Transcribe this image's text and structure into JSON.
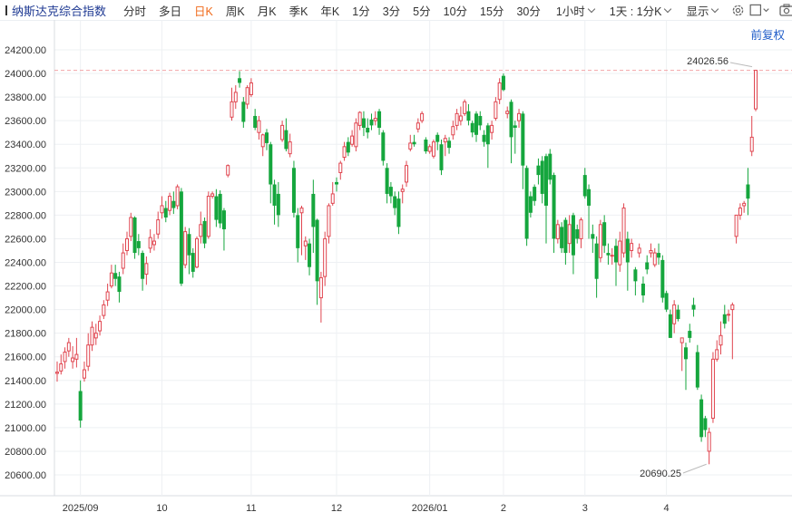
{
  "toolbar": {
    "title": "纳斯达克综合指数",
    "periods": [
      "分时",
      "多日",
      "日K",
      "周K",
      "月K",
      "季K",
      "年K",
      "1分",
      "3分",
      "5分",
      "10分",
      "15分",
      "30分"
    ],
    "active_period": "日K",
    "interval_select": "1小时",
    "range_select": "1天 : 1分K",
    "display_select": "显示",
    "icons": [
      "settings-icon",
      "square-icon",
      "camera-icon",
      "pen-icon",
      "fullscreen-icon"
    ]
  },
  "adjust_label": "前复权",
  "colors": {
    "up": "#e0454f",
    "down": "#15a63d",
    "grid": "#eef0f3",
    "ref_line": "#f2a5a8",
    "title": "#1f3a93"
  },
  "chart_data": {
    "type": "candlestick",
    "ylim": [
      20500,
      24250
    ],
    "yticks": [
      20600,
      20800,
      21000,
      21200,
      21400,
      21600,
      21800,
      22000,
      22200,
      22400,
      22600,
      22800,
      23000,
      23200,
      23400,
      23600,
      23800,
      24000,
      24200
    ],
    "ytick_labels": [
      "20600.00",
      "20800.00",
      "21000.00",
      "21200.00",
      "21400.00",
      "21600.00",
      "21800.00",
      "22000.00",
      "22200.00",
      "22400.00",
      "22600.00",
      "22800.00",
      "23000.00",
      "23200.00",
      "23400.00",
      "23600.00",
      "23800.00",
      "24000.00",
      "24200.00"
    ],
    "x_labels": [
      "2025/09",
      "10",
      "11",
      "12",
      "2026/01",
      "2",
      "3",
      "4"
    ],
    "x_label_index": [
      6,
      27,
      50,
      72,
      96,
      115,
      136,
      157
    ],
    "high_label": "24026.56",
    "low_label": "20690.25",
    "high_value": 24026.56,
    "low_value": 20690.25,
    "grid": true,
    "candles": [
      [
        21460,
        21470,
        21390,
        21560
      ],
      [
        21480,
        21540,
        21450,
        21620
      ],
      [
        21560,
        21640,
        21500,
        21680
      ],
      [
        21650,
        21720,
        21600,
        21760
      ],
      [
        21560,
        21590,
        21500,
        21690
      ],
      [
        21580,
        21620,
        21510,
        21760
      ],
      [
        21310,
        21060,
        21000,
        21400
      ],
      [
        21420,
        21490,
        21390,
        21560
      ],
      [
        21520,
        21700,
        21480,
        21800
      ],
      [
        21700,
        21850,
        21650,
        21900
      ],
      [
        21760,
        21800,
        21700,
        21880
      ],
      [
        21820,
        21900,
        21780,
        21950
      ],
      [
        21950,
        22040,
        21920,
        22080
      ],
      [
        22080,
        22150,
        22030,
        22220
      ],
      [
        22200,
        22310,
        22180,
        22380
      ],
      [
        22310,
        22260,
        22200,
        22380
      ],
      [
        22280,
        22150,
        22060,
        22320
      ],
      [
        22350,
        22480,
        22300,
        22560
      ],
      [
        22500,
        22600,
        22460,
        22660
      ],
      [
        22620,
        22780,
        22580,
        22820
      ],
      [
        22780,
        22480,
        22430,
        22790
      ],
      [
        22580,
        22520,
        22460,
        22640
      ],
      [
        22480,
        22260,
        22160,
        22500
      ],
      [
        22300,
        22390,
        22210,
        22450
      ],
      [
        22520,
        22610,
        22480,
        22680
      ],
      [
        22550,
        22580,
        22500,
        22640
      ],
      [
        22640,
        22760,
        22600,
        22830
      ],
      [
        22820,
        22880,
        22770,
        22960
      ],
      [
        22860,
        22780,
        22740,
        22920
      ],
      [
        22840,
        22960,
        22800,
        22990
      ],
      [
        22920,
        22860,
        22810,
        23000
      ],
      [
        22880,
        23040,
        22850,
        23060
      ],
      [
        23000,
        22220,
        22200,
        23030
      ],
      [
        22380,
        22660,
        22350,
        22700
      ],
      [
        22640,
        22460,
        22300,
        22690
      ],
      [
        22480,
        22320,
        22270,
        22520
      ],
      [
        22360,
        22600,
        22350,
        22620
      ],
      [
        22620,
        22720,
        22560,
        22830
      ],
      [
        22750,
        22560,
        22520,
        22780
      ],
      [
        22620,
        22960,
        22600,
        23000
      ],
      [
        22960,
        22980,
        22940,
        23000
      ],
      [
        22960,
        22760,
        22700,
        23020
      ],
      [
        22980,
        22730,
        22690,
        23010
      ],
      [
        22840,
        22680,
        22500,
        22860
      ],
      [
        23140,
        23220,
        23120,
        23230
      ],
      [
        23630,
        23760,
        23600,
        23880
      ],
      [
        23760,
        23840,
        23700,
        23900
      ],
      [
        23960,
        23920,
        23880,
        24020
      ],
      [
        23760,
        23590,
        23540,
        23800
      ],
      [
        23740,
        23880,
        23700,
        23900
      ],
      [
        23820,
        23920,
        23800,
        23960
      ],
      [
        23640,
        23540,
        23520,
        23700
      ],
      [
        23500,
        23600,
        23440,
        23640
      ],
      [
        23380,
        23480,
        23300,
        23490
      ],
      [
        23500,
        23410,
        23350,
        23530
      ],
      [
        23400,
        23060,
        22900,
        23420
      ],
      [
        23060,
        22880,
        22720,
        23100
      ],
      [
        22980,
        22800,
        22700,
        23080
      ],
      [
        23440,
        23560,
        23420,
        23600
      ],
      [
        23520,
        23360,
        23340,
        23620
      ],
      [
        23320,
        23420,
        23290,
        23490
      ],
      [
        23200,
        22820,
        22780,
        23260
      ],
      [
        22800,
        22520,
        22400,
        22860
      ],
      [
        22820,
        22860,
        22460,
        22880
      ],
      [
        22540,
        22580,
        22420,
        22620
      ],
      [
        22560,
        22360,
        22290,
        22600
      ],
      [
        22980,
        22700,
        22480,
        23100
      ],
      [
        22760,
        22240,
        22040,
        22770
      ],
      [
        22100,
        22270,
        21890,
        22320
      ],
      [
        22280,
        22600,
        22200,
        22660
      ],
      [
        22620,
        22880,
        22560,
        22900
      ],
      [
        22900,
        22980,
        22880,
        23080
      ],
      [
        23080,
        23060,
        23000,
        23120
      ],
      [
        23160,
        23240,
        23100,
        23260
      ],
      [
        23290,
        23380,
        23260,
        23420
      ],
      [
        23420,
        23330,
        23300,
        23460
      ],
      [
        23400,
        23470,
        23380,
        23520
      ],
      [
        23380,
        23580,
        23340,
        23620
      ],
      [
        23560,
        23670,
        23520,
        23680
      ],
      [
        23620,
        23540,
        23470,
        23680
      ],
      [
        23540,
        23500,
        23450,
        23620
      ],
      [
        23610,
        23560,
        23520,
        23660
      ],
      [
        23600,
        23620,
        23560,
        23680
      ],
      [
        23680,
        23540,
        23480,
        23700
      ],
      [
        23500,
        23260,
        23220,
        23520
      ],
      [
        23200,
        22980,
        22900,
        23240
      ],
      [
        23040,
        22960,
        22900,
        23080
      ],
      [
        22960,
        22860,
        22800,
        23000
      ],
      [
        22940,
        22700,
        22640,
        23000
      ],
      [
        23000,
        23020,
        22900,
        23060
      ],
      [
        23080,
        23220,
        23040,
        23260
      ],
      [
        23360,
        23410,
        23340,
        23480
      ],
      [
        23420,
        23400,
        23380,
        23480
      ],
      [
        23530,
        23580,
        23500,
        23620
      ],
      [
        23600,
        23660,
        23580,
        23680
      ],
      [
        23440,
        23340,
        23320,
        23460
      ],
      [
        23340,
        23380,
        23320,
        23400
      ],
      [
        23300,
        23420,
        23280,
        23440
      ],
      [
        23480,
        23420,
        23350,
        23500
      ],
      [
        23400,
        23180,
        23140,
        23440
      ],
      [
        23420,
        23450,
        23300,
        23480
      ],
      [
        23430,
        23370,
        23320,
        23460
      ],
      [
        23480,
        23550,
        23440,
        23600
      ],
      [
        23560,
        23660,
        23520,
        23700
      ],
      [
        23600,
        23640,
        23560,
        23720
      ],
      [
        23660,
        23760,
        23640,
        23780
      ],
      [
        23680,
        23600,
        23560,
        23740
      ],
      [
        23580,
        23500,
        23460,
        23600
      ],
      [
        23660,
        23480,
        23420,
        23680
      ],
      [
        23640,
        23560,
        23520,
        23680
      ],
      [
        23480,
        23420,
        23380,
        23520
      ],
      [
        23560,
        23400,
        23200,
        23580
      ],
      [
        23500,
        23560,
        23440,
        23600
      ],
      [
        23620,
        23760,
        23600,
        23800
      ],
      [
        23780,
        23920,
        23740,
        23960
      ],
      [
        23980,
        23860,
        23850,
        24000
      ],
      [
        23660,
        23680,
        23620,
        23720
      ],
      [
        23760,
        23460,
        23240,
        23780
      ],
      [
        23560,
        23540,
        23320,
        23600
      ],
      [
        23600,
        23660,
        23540,
        23700
      ],
      [
        23660,
        23220,
        23020,
        23680
      ],
      [
        23200,
        22600,
        22540,
        23220
      ],
      [
        22960,
        22820,
        22780,
        23000
      ],
      [
        23040,
        22920,
        22880,
        23060
      ],
      [
        23220,
        23140,
        23060,
        23280
      ],
      [
        23260,
        22980,
        22900,
        23300
      ],
      [
        23300,
        22880,
        22560,
        23320
      ],
      [
        23320,
        23100,
        23060,
        23360
      ],
      [
        23140,
        22600,
        22480,
        23160
      ],
      [
        22600,
        22720,
        22560,
        22760
      ],
      [
        22700,
        22520,
        22480,
        22740
      ],
      [
        22760,
        22480,
        22380,
        22780
      ],
      [
        22560,
        22720,
        22480,
        22800
      ],
      [
        22800,
        22460,
        22300,
        22820
      ],
      [
        22680,
        22600,
        22560,
        22720
      ],
      [
        22600,
        22760,
        22520,
        22780
      ],
      [
        23140,
        22960,
        22940,
        23200
      ],
      [
        23020,
        22880,
        22600,
        23060
      ],
      [
        22640,
        22600,
        22480,
        22720
      ],
      [
        22560,
        22260,
        22100,
        22620
      ],
      [
        22440,
        22720,
        22400,
        22760
      ],
      [
        22740,
        22540,
        22480,
        22800
      ],
      [
        22480,
        22460,
        22380,
        22560
      ],
      [
        22460,
        22460,
        22380,
        22520
      ],
      [
        22540,
        22400,
        22200,
        22600
      ],
      [
        22380,
        22580,
        22320,
        22660
      ],
      [
        22480,
        22860,
        22440,
        22900
      ],
      [
        22600,
        22400,
        22160,
        22660
      ],
      [
        22500,
        22560,
        22440,
        22600
      ],
      [
        22340,
        22240,
        22120,
        22360
      ],
      [
        22480,
        22520,
        22440,
        22560
      ],
      [
        22220,
        22120,
        22060,
        22280
      ],
      [
        22400,
        22340,
        22300,
        22460
      ],
      [
        22480,
        22500,
        22440,
        22560
      ],
      [
        22380,
        22480,
        22360,
        22520
      ],
      [
        22480,
        22440,
        22380,
        22560
      ],
      [
        22420,
        22100,
        22060,
        22460
      ],
      [
        22140,
        22000,
        21980,
        22160
      ],
      [
        21960,
        21760,
        21760,
        22000
      ],
      [
        21880,
        22040,
        21800,
        22080
      ],
      [
        22000,
        21920,
        21900,
        22040
      ],
      [
        21720,
        21760,
        21480,
        21740
      ],
      [
        21680,
        21580,
        21320,
        21720
      ],
      [
        21820,
        21760,
        21720,
        21880
      ],
      [
        22040,
        22000,
        21940,
        22100
      ],
      [
        21640,
        21340,
        21320,
        21700
      ],
      [
        21240,
        20920,
        20880,
        21280
      ],
      [
        21080,
        20980,
        20920,
        21100
      ],
      [
        20800,
        20960,
        20690,
        21000
      ],
      [
        21080,
        21580,
        21040,
        21640
      ],
      [
        21580,
        21660,
        21560,
        21740
      ],
      [
        21700,
        21780,
        21620,
        21900
      ],
      [
        21960,
        21880,
        21840,
        22040
      ],
      [
        21960,
        21960,
        21900,
        22000
      ],
      [
        22000,
        22040,
        21580,
        22060
      ],
      [
        22620,
        22800,
        22560,
        22800
      ],
      [
        22800,
        22860,
        22760,
        22900
      ],
      [
        22880,
        22900,
        22820,
        22920
      ],
      [
        23060,
        22940,
        22800,
        23200
      ],
      [
        23340,
        23460,
        23300,
        23640
      ],
      [
        23700,
        24026.56,
        23680,
        24030
      ]
    ]
  }
}
